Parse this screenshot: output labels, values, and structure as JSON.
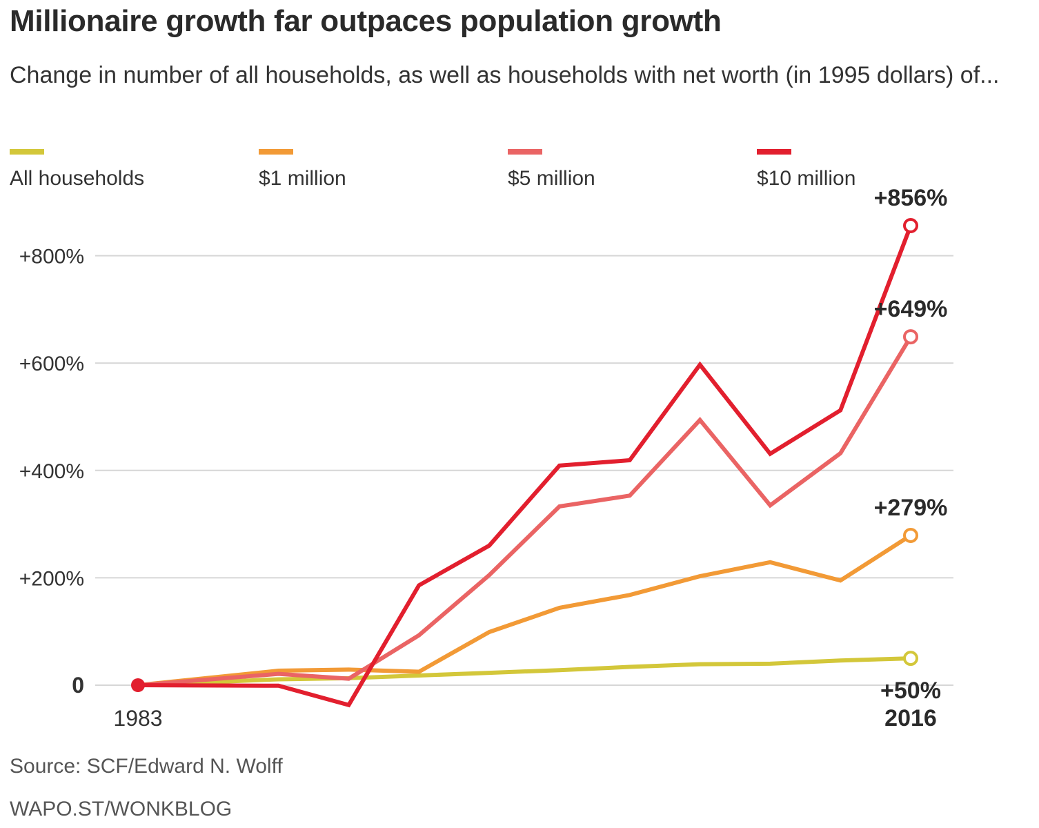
{
  "title": "Millionaire growth far outpaces population growth",
  "subtitle": "Change in number of all households, as well as households with net worth (in 1995 dollars) of...",
  "source": "Source: SCF/Edward N. Wolff",
  "credit": "WAPO.ST/WONKBLOG",
  "colors": {
    "grid": "#d6d6d6",
    "axis_text": "#333333",
    "end_label": "#2a2a2a"
  },
  "chart_data": {
    "type": "line",
    "x": [
      1983,
      1989,
      1992,
      1995,
      1998,
      2001,
      2004,
      2007,
      2010,
      2013,
      2016
    ],
    "x_labels": [
      "1983",
      "2016"
    ],
    "ylim": [
      0,
      856
    ],
    "yticks": [
      0,
      200,
      400,
      600,
      800
    ],
    "ytick_labels": [
      "0",
      "+200%",
      "+400%",
      "+600%",
      "+800%"
    ],
    "grid": true,
    "legend_position": "top",
    "series": [
      {
        "name": "All households",
        "color": "#d3c73a",
        "values": [
          0,
          11,
          13,
          18,
          23,
          28,
          34,
          39,
          40,
          46,
          50
        ],
        "end_label": "+50%"
      },
      {
        "name": "$1 million",
        "color": "#f29a36",
        "values": [
          0,
          27,
          29,
          25,
          99,
          144,
          168,
          203,
          229,
          195,
          279
        ],
        "end_label": "+279%"
      },
      {
        "name": "$5 million",
        "color": "#ea6464",
        "values": [
          0,
          21,
          12,
          93,
          205,
          333,
          353,
          494,
          335,
          432,
          649
        ],
        "end_label": "+649%"
      },
      {
        "name": "$10 million",
        "color": "#e21f2e",
        "values": [
          0,
          -1,
          -37,
          186,
          260,
          409,
          419,
          597,
          431,
          512,
          856
        ],
        "end_label": "+856%"
      }
    ]
  }
}
